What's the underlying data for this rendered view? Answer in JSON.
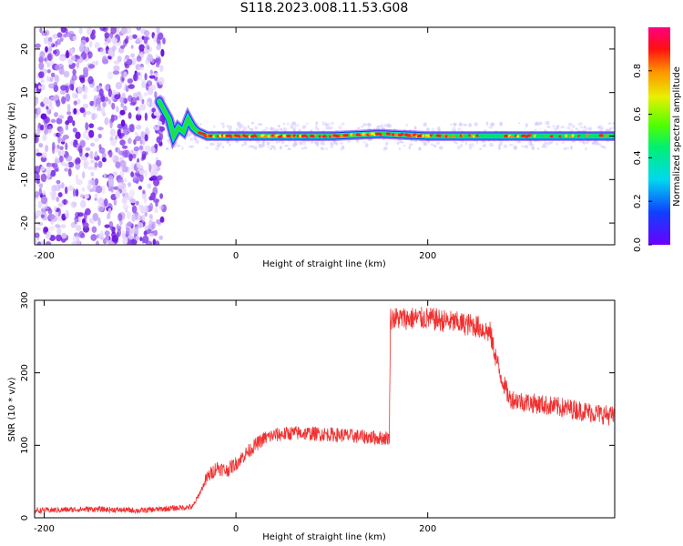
{
  "title": "S118.2023.008.11.53.G08",
  "chart_data": [
    {
      "type": "heatmap",
      "xlabel": "Height of straight line (km)",
      "ylabel": "Frequency (Hz)",
      "xlim": [
        -210,
        395
      ],
      "ylim": [
        -25,
        25
      ],
      "xticks": [
        -200,
        0,
        200
      ],
      "yticks": [
        -20,
        -10,
        0,
        10,
        20
      ],
      "colorbar": {
        "label": "Normalized spectral amplitude",
        "range": [
          0,
          1
        ],
        "ticks": [
          0.0,
          0.2,
          0.4,
          0.6,
          0.8
        ],
        "colormap": "rainbow (purple → blue → cyan → green → yellow → orange → red → magenta)"
      },
      "noise_region": {
        "x_range": [
          -210,
          -75
        ],
        "freq_range": [
          -25,
          25
        ],
        "level": "low (purple)"
      },
      "signal_line": {
        "description": "Doppler frequency ridge vs height",
        "x": [
          -80,
          -70,
          -65,
          -60,
          -55,
          -50,
          -45,
          -40,
          -35,
          -30,
          -20,
          0,
          50,
          100,
          150,
          200,
          250,
          300,
          350,
          395
        ],
        "freq": [
          8,
          4,
          0,
          2,
          1,
          4,
          2,
          1,
          0.5,
          0,
          0,
          0,
          0,
          0,
          0.5,
          0,
          0,
          0,
          0,
          0
        ],
        "peak_amplitude": "high (red) along most of the ridge"
      }
    },
    {
      "type": "line",
      "xlabel": "Height of straight line (km)",
      "ylabel": "SNR (10 * v/v)",
      "xlim": [
        -210,
        395
      ],
      "ylim": [
        0,
        300
      ],
      "xticks": [
        -200,
        0,
        200
      ],
      "yticks": [
        0,
        100,
        200,
        300
      ],
      "series": [
        {
          "color": "#f03030",
          "x": [
            -210,
            -150,
            -100,
            -45,
            -30,
            -20,
            -10,
            0,
            10,
            20,
            30,
            40,
            60,
            100,
            150,
            160,
            161,
            200,
            250,
            265,
            275,
            285,
            300,
            350,
            395
          ],
          "y": [
            10,
            12,
            10,
            15,
            55,
            70,
            65,
            75,
            88,
            100,
            110,
            114,
            117,
            115,
            110,
            110,
            275,
            275,
            265,
            255,
            200,
            165,
            160,
            150,
            140
          ]
        }
      ]
    }
  ]
}
